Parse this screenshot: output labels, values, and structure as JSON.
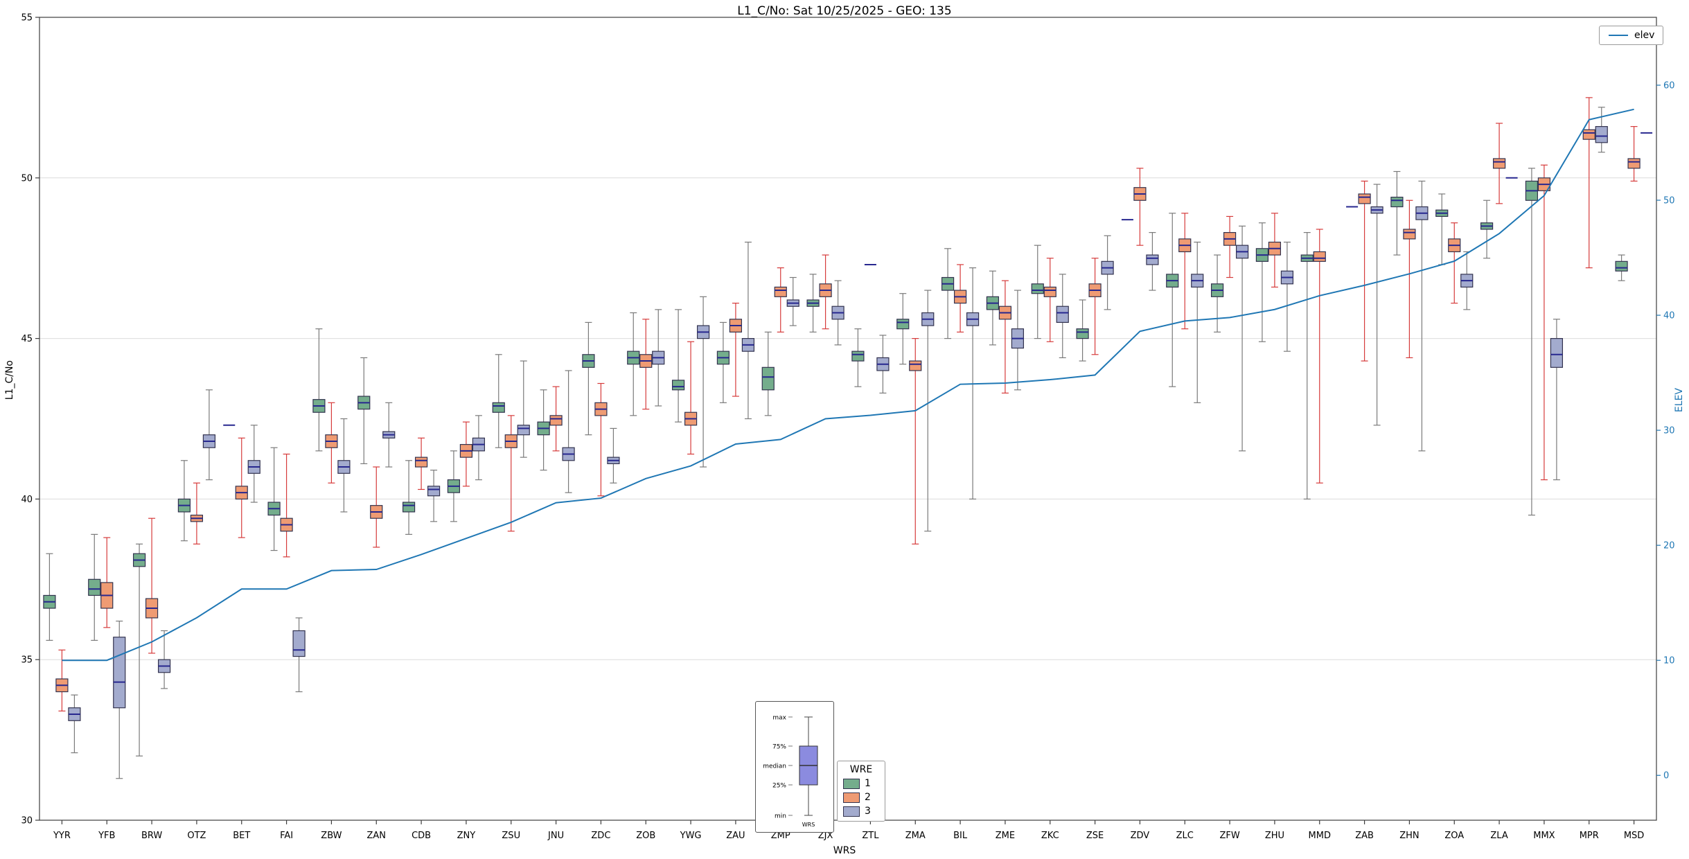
{
  "title": "L1_C/No: Sat 10/25/2025 - GEO: 135",
  "axes": {
    "left_label": "L1_C/No",
    "right_label": "ELEV",
    "x_label": "WRS"
  },
  "legend_elev": {
    "label": "elev",
    "line_color": "#1f77b4"
  },
  "legend_wre": {
    "title": "WRE",
    "entries": [
      {
        "label": "1",
        "color": "#74ad8c"
      },
      {
        "label": "2",
        "color": "#ef9b73"
      },
      {
        "label": "3",
        "color": "#a3abce"
      }
    ]
  },
  "inset": {
    "labels": [
      "max",
      "75%",
      "median",
      "25%",
      "min"
    ],
    "footer": "WRS",
    "box_color": "#8b8bdf"
  },
  "chart_data": {
    "type": "boxplot+line",
    "title": "L1_C/No: Sat 10/25/2025 - GEO: 135",
    "xlabel": "WRS",
    "ylabel_left": "L1_C/No",
    "ylabel_right": "ELEV",
    "grid": true,
    "ylim_left": [
      30,
      55
    ],
    "yticks_left": [
      30,
      35,
      40,
      45,
      50,
      55
    ],
    "ylim_right": [
      -3.9,
      65.9
    ],
    "yticks_right": [
      0,
      10,
      20,
      30,
      40,
      50,
      60
    ],
    "categories": [
      "YYR",
      "YFB",
      "BRW",
      "OTZ",
      "BET",
      "FAI",
      "ZBW",
      "ZAN",
      "CDB",
      "ZNY",
      "ZSU",
      "JNU",
      "ZDC",
      "ZOB",
      "YWG",
      "ZAU",
      "ZMP",
      "ZJX",
      "ZTL",
      "ZMA",
      "BIL",
      "ZME",
      "ZKC",
      "ZSE",
      "ZDV",
      "ZLC",
      "ZFW",
      "ZHU",
      "MMD",
      "ZAB",
      "ZHN",
      "ZOA",
      "ZLA",
      "MMX",
      "MPR",
      "MSD"
    ],
    "box_stats_order": [
      "min",
      "q1",
      "median",
      "q3",
      "max"
    ],
    "series": [
      {
        "name": "1",
        "color": "#74ad8c",
        "edge_color": "#32324e",
        "whisker_color": "#7a7a7a",
        "median_color": "#27278f",
        "boxes": [
          [
            35.6,
            36.6,
            36.8,
            37.0,
            38.3
          ],
          [
            35.6,
            37.0,
            37.2,
            37.5,
            38.9
          ],
          [
            32.0,
            37.9,
            38.1,
            38.3,
            38.6
          ],
          [
            38.7,
            39.6,
            39.8,
            40.0,
            41.2
          ],
          [
            42.3,
            42.3,
            42.3,
            42.3,
            42.3
          ],
          [
            38.4,
            39.5,
            39.7,
            39.9,
            41.6
          ],
          [
            41.5,
            42.7,
            42.9,
            43.1,
            45.3
          ],
          [
            41.1,
            42.8,
            43.0,
            43.2,
            44.4
          ],
          [
            38.9,
            39.6,
            39.8,
            39.9,
            41.2
          ],
          [
            39.3,
            40.2,
            40.4,
            40.6,
            41.5
          ],
          [
            41.6,
            42.7,
            42.9,
            43.0,
            44.5
          ],
          [
            40.9,
            42.0,
            42.2,
            42.4,
            43.4
          ],
          [
            42.0,
            44.1,
            44.3,
            44.5,
            45.5
          ],
          [
            42.6,
            44.2,
            44.4,
            44.6,
            45.8
          ],
          [
            42.4,
            43.4,
            43.5,
            43.7,
            45.9
          ],
          [
            43.0,
            44.2,
            44.4,
            44.6,
            45.5
          ],
          [
            42.6,
            43.4,
            43.8,
            44.1,
            45.2
          ],
          [
            45.2,
            46.0,
            46.1,
            46.2,
            47.0
          ],
          [
            43.5,
            44.3,
            44.5,
            44.6,
            45.3
          ],
          [
            44.2,
            45.3,
            45.5,
            45.6,
            46.4
          ],
          [
            45.0,
            46.5,
            46.7,
            46.9,
            47.8
          ],
          [
            44.8,
            45.9,
            46.1,
            46.3,
            47.1
          ],
          [
            45.0,
            46.4,
            46.5,
            46.7,
            47.9
          ],
          [
            44.3,
            45.0,
            45.2,
            45.3,
            46.2
          ],
          [
            48.7,
            48.7,
            48.7,
            48.7,
            48.7
          ],
          [
            43.5,
            46.6,
            46.8,
            47.0,
            48.9
          ],
          [
            45.2,
            46.3,
            46.5,
            46.7,
            47.6
          ],
          [
            44.9,
            47.4,
            47.6,
            47.8,
            48.6
          ],
          [
            40.0,
            47.4,
            47.5,
            47.6,
            48.3
          ],
          [
            49.1,
            49.1,
            49.1,
            49.1,
            49.1
          ],
          [
            47.6,
            49.1,
            49.3,
            49.4,
            50.2
          ],
          [
            47.3,
            48.8,
            48.9,
            49.0,
            49.5
          ],
          [
            47.5,
            48.4,
            48.5,
            48.6,
            49.3
          ],
          [
            39.5,
            49.3,
            49.6,
            49.9,
            50.3
          ],
          null,
          [
            46.8,
            47.1,
            47.2,
            47.4,
            47.6
          ]
        ]
      },
      {
        "name": "2",
        "color": "#ef9b73",
        "edge_color": "#32324e",
        "whisker_color": "#d63a3a",
        "median_color": "#27278f",
        "boxes": [
          [
            33.4,
            34.0,
            34.2,
            34.4,
            35.3
          ],
          [
            36.0,
            36.6,
            37.0,
            37.4,
            38.8
          ],
          [
            35.2,
            36.3,
            36.6,
            36.9,
            39.4
          ],
          [
            38.6,
            39.3,
            39.4,
            39.5,
            40.5
          ],
          [
            38.8,
            40.0,
            40.2,
            40.4,
            41.9
          ],
          [
            38.2,
            39.0,
            39.2,
            39.4,
            41.4
          ],
          [
            40.5,
            41.6,
            41.8,
            42.0,
            43.0
          ],
          [
            38.5,
            39.4,
            39.6,
            39.8,
            41.0
          ],
          [
            40.3,
            41.0,
            41.2,
            41.3,
            41.9
          ],
          [
            40.4,
            41.3,
            41.5,
            41.7,
            42.4
          ],
          [
            39.0,
            41.6,
            41.8,
            42.0,
            42.6
          ],
          [
            41.5,
            42.3,
            42.5,
            42.6,
            43.5
          ],
          [
            40.1,
            42.6,
            42.8,
            43.0,
            43.6
          ],
          [
            42.8,
            44.1,
            44.3,
            44.5,
            45.6
          ],
          [
            41.4,
            42.3,
            42.5,
            42.7,
            44.9
          ],
          [
            43.2,
            45.2,
            45.4,
            45.6,
            46.1
          ],
          [
            45.2,
            46.3,
            46.5,
            46.6,
            47.2
          ],
          [
            45.3,
            46.3,
            46.5,
            46.7,
            47.6
          ],
          [
            47.3,
            47.3,
            47.3,
            47.3,
            47.3
          ],
          [
            38.6,
            44.0,
            44.2,
            44.3,
            45.0
          ],
          [
            45.2,
            46.1,
            46.3,
            46.5,
            47.3
          ],
          [
            43.3,
            45.6,
            45.8,
            46.0,
            46.8
          ],
          [
            44.9,
            46.3,
            46.5,
            46.6,
            47.5
          ],
          [
            44.5,
            46.3,
            46.5,
            46.7,
            47.5
          ],
          [
            47.9,
            49.3,
            49.5,
            49.7,
            50.3
          ],
          [
            45.3,
            47.7,
            47.9,
            48.1,
            48.9
          ],
          [
            46.9,
            47.9,
            48.1,
            48.3,
            48.8
          ],
          [
            46.6,
            47.6,
            47.8,
            48.0,
            48.9
          ],
          [
            40.5,
            47.4,
            47.5,
            47.7,
            48.4
          ],
          [
            44.3,
            49.2,
            49.4,
            49.5,
            49.9
          ],
          [
            44.4,
            48.1,
            48.3,
            48.4,
            49.3
          ],
          [
            46.1,
            47.7,
            47.9,
            48.1,
            48.6
          ],
          [
            49.2,
            50.3,
            50.5,
            50.6,
            51.7
          ],
          [
            40.6,
            49.6,
            49.8,
            50.0,
            50.4
          ],
          [
            47.2,
            51.2,
            51.4,
            51.5,
            52.5
          ],
          [
            49.9,
            50.3,
            50.5,
            50.6,
            51.6
          ]
        ]
      },
      {
        "name": "3",
        "color": "#a3abce",
        "edge_color": "#32324e",
        "whisker_color": "#7a7a7a",
        "median_color": "#27278f",
        "boxes": [
          [
            32.1,
            33.1,
            33.3,
            33.5,
            33.9
          ],
          [
            31.3,
            33.5,
            34.3,
            35.7,
            36.2
          ],
          [
            34.1,
            34.6,
            34.8,
            35.0,
            35.9
          ],
          [
            40.6,
            41.6,
            41.8,
            42.0,
            43.4
          ],
          [
            39.9,
            40.8,
            41.0,
            41.2,
            42.3
          ],
          [
            34.0,
            35.1,
            35.3,
            35.9,
            36.3
          ],
          [
            39.6,
            40.8,
            41.0,
            41.2,
            42.5
          ],
          [
            41.0,
            41.9,
            42.0,
            42.1,
            43.0
          ],
          [
            39.3,
            40.1,
            40.3,
            40.4,
            40.9
          ],
          [
            40.6,
            41.5,
            41.7,
            41.9,
            42.6
          ],
          [
            41.3,
            42.0,
            42.2,
            42.3,
            44.3
          ],
          [
            40.2,
            41.2,
            41.4,
            41.6,
            44.0
          ],
          [
            40.5,
            41.1,
            41.2,
            41.3,
            42.2
          ],
          [
            42.9,
            44.2,
            44.4,
            44.6,
            45.9
          ],
          [
            41.0,
            45.0,
            45.2,
            45.4,
            46.3
          ],
          [
            42.5,
            44.6,
            44.8,
            45.0,
            48.0
          ],
          [
            45.4,
            46.0,
            46.1,
            46.2,
            46.9
          ],
          [
            44.8,
            45.6,
            45.8,
            46.0,
            46.8
          ],
          [
            43.3,
            44.0,
            44.2,
            44.4,
            45.1
          ],
          [
            39.0,
            45.4,
            45.6,
            45.8,
            46.5
          ],
          [
            40.0,
            45.4,
            45.6,
            45.8,
            47.2
          ],
          [
            43.4,
            44.7,
            45.0,
            45.3,
            46.5
          ],
          [
            44.4,
            45.5,
            45.8,
            46.0,
            47.0
          ],
          [
            45.9,
            47.0,
            47.2,
            47.4,
            48.2
          ],
          [
            46.5,
            47.3,
            47.5,
            47.6,
            48.3
          ],
          [
            43.0,
            46.6,
            46.8,
            47.0,
            48.0
          ],
          [
            41.5,
            47.5,
            47.7,
            47.9,
            48.5
          ],
          [
            44.6,
            46.7,
            46.9,
            47.1,
            48.0
          ],
          null,
          [
            42.3,
            48.9,
            49.0,
            49.1,
            49.8
          ],
          [
            41.5,
            48.7,
            48.9,
            49.1,
            49.9
          ],
          [
            45.9,
            46.6,
            46.8,
            47.0,
            47.7
          ],
          [
            50.0,
            50.0,
            50.0,
            50.0,
            50.0
          ],
          [
            40.6,
            44.1,
            44.5,
            45.0,
            45.6
          ],
          [
            50.8,
            51.1,
            51.3,
            51.6,
            52.2
          ],
          [
            51.4,
            51.4,
            51.4,
            51.4,
            51.4
          ]
        ]
      }
    ],
    "line": {
      "name": "elev",
      "color": "#1f77b4",
      "axis": "right",
      "values": [
        10.0,
        10.0,
        11.6,
        13.7,
        16.2,
        16.2,
        17.8,
        17.9,
        19.2,
        20.6,
        22.0,
        23.7,
        24.1,
        25.8,
        26.9,
        28.8,
        29.2,
        31.0,
        31.3,
        31.7,
        34.0,
        34.1,
        34.4,
        34.8,
        38.6,
        39.5,
        39.8,
        40.5,
        41.7,
        42.6,
        43.6,
        44.7,
        47.1,
        50.4,
        57.0,
        57.9
      ]
    }
  }
}
